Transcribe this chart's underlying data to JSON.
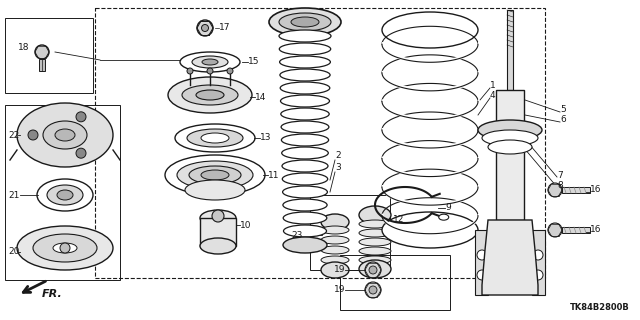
{
  "diagram_code": "TK84B2800B",
  "background_color": "#ffffff",
  "line_color": "#1a1a1a",
  "figsize": [
    6.4,
    3.2
  ],
  "dpi": 100
}
